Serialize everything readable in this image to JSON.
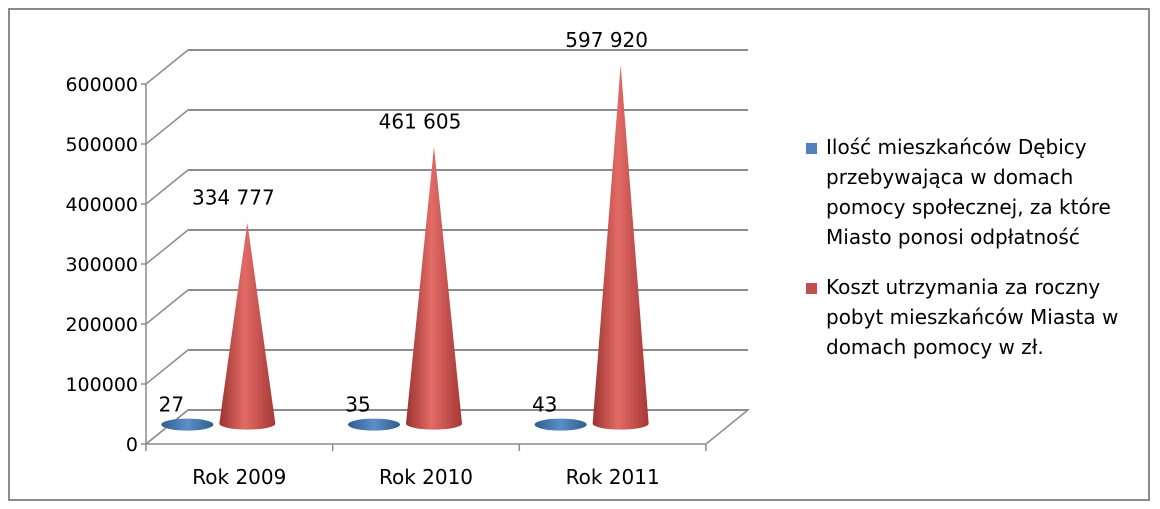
{
  "chart_data": {
    "type": "bar",
    "style": "3d-cone",
    "categories": [
      "Rok 2009",
      "Rok 2010",
      "Rok 2011"
    ],
    "series": [
      {
        "name": "Ilość mieszkańców Dębicy przebywająca w domach pomocy społecznej, za które Miasto ponosi odpłatność",
        "color": "#4f81bd",
        "values": [
          27,
          35,
          43
        ],
        "labels": [
          "27",
          "35",
          "43"
        ]
      },
      {
        "name": "Koszt utrzymania za roczny pobyt mieszkańców Miasta w domach pomocy w zł.",
        "color": "#c0504d",
        "values": [
          334777,
          461605,
          597920
        ],
        "labels": [
          "334 777",
          "461 605",
          "597 920"
        ]
      }
    ],
    "y_ticks": [
      "0",
      "100000",
      "200000",
      "300000",
      "400000",
      "500000",
      "600000"
    ],
    "ylim": [
      0,
      600000
    ],
    "grid": true,
    "legend_position": "right"
  }
}
